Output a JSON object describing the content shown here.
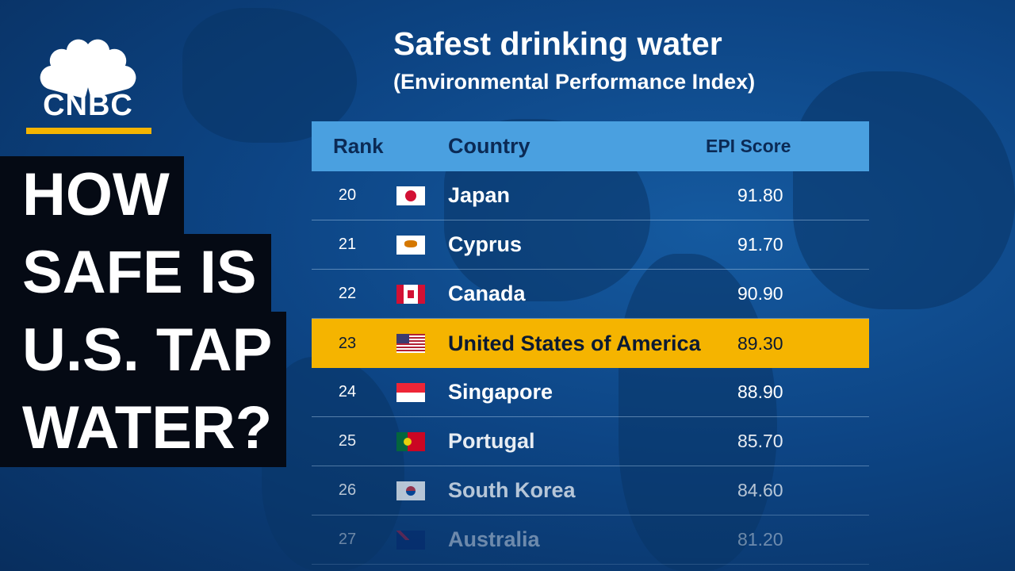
{
  "logo": {
    "text": "CNBC",
    "accent": "#f5b400"
  },
  "headline": [
    "HOW",
    "SAFE IS",
    "U.S. TAP",
    "WATER?"
  ],
  "title": "Safest drinking water",
  "subtitle": "(Environmental Performance Index)",
  "table": {
    "headers": {
      "rank": "Rank",
      "country": "Country",
      "score": "EPI Score"
    },
    "header_color": "#4aa0e0",
    "highlight_color": "#f5b400",
    "rows": [
      {
        "rank": "20",
        "flag": "japan-flag",
        "country": "Japan",
        "score": "91.80"
      },
      {
        "rank": "21",
        "flag": "cyprus-flag",
        "country": "Cyprus",
        "score": "91.70"
      },
      {
        "rank": "22",
        "flag": "canada-flag",
        "country": "Canada",
        "score": "90.90"
      },
      {
        "rank": "23",
        "flag": "usa-flag",
        "country": "United States of America",
        "score": "89.30",
        "highlighted": true
      },
      {
        "rank": "24",
        "flag": "singapore-flag",
        "country": "Singapore",
        "score": "88.90"
      },
      {
        "rank": "25",
        "flag": "portugal-flag",
        "country": "Portugal",
        "score": "85.70"
      },
      {
        "rank": "26",
        "flag": "south-korea-flag",
        "country": "South Korea",
        "score": "84.60"
      },
      {
        "rank": "27",
        "flag": "australia-flag",
        "country": "Australia",
        "score": "81.20"
      }
    ]
  }
}
